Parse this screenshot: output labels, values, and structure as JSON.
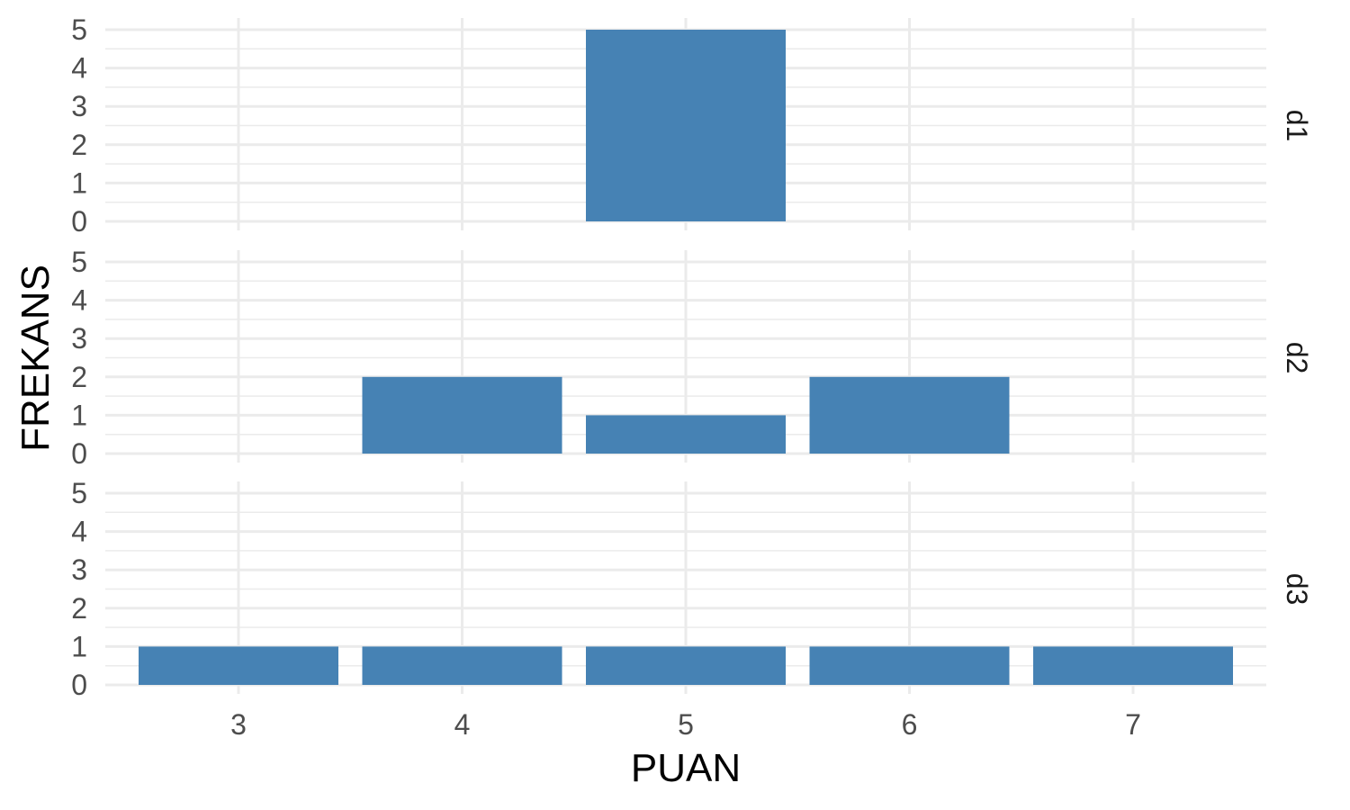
{
  "chart_data": {
    "type": "bar",
    "xlabel": "PUAN",
    "ylabel": "FREKANS",
    "categories": [
      "3",
      "4",
      "5",
      "6",
      "7"
    ],
    "ylim": [
      0,
      5
    ],
    "yticks": [
      "0",
      "1",
      "2",
      "3",
      "4",
      "5"
    ],
    "grid": true,
    "bar_color": "#4682B4",
    "grid_color": "#ebebeb",
    "facets": [
      {
        "name": "d1",
        "values": [
          0,
          0,
          5,
          0,
          0
        ]
      },
      {
        "name": "d2",
        "values": [
          0,
          2,
          1,
          2,
          0
        ]
      },
      {
        "name": "d3",
        "values": [
          1,
          1,
          1,
          1,
          1
        ]
      }
    ]
  }
}
